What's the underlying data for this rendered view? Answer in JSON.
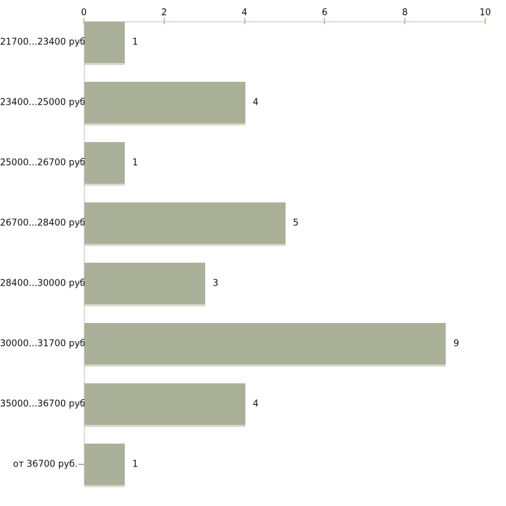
{
  "chart_data": {
    "type": "bar",
    "orientation": "horizontal",
    "title": "",
    "xlabel": "",
    "ylabel": "",
    "categories": [
      "21700...23400 руб.",
      "23400...25000 руб.",
      "25000...26700 руб.",
      "26700...28400 руб.",
      "28400...30000 руб.",
      "30000...31700 руб.",
      "35000...36700 руб.",
      "от 36700 руб."
    ],
    "values": [
      1,
      4,
      1,
      5,
      3,
      9,
      4,
      1
    ],
    "x_ticks": [
      0,
      2,
      4,
      6,
      8,
      10
    ],
    "xlim": [
      0,
      10
    ],
    "grid": false,
    "legend_position": "none",
    "value_labels_shown": true,
    "x_axis_position": "top"
  },
  "colors": {
    "bar_fill": "#abb199",
    "bar_bottom_edge": "#d9dbcd",
    "axis_line": "#c3c3c3",
    "x_tick_mark": "#c6ca8e",
    "category_tick_mark": "#b3b3a6",
    "text": "#111111",
    "background": "#ffffff"
  }
}
